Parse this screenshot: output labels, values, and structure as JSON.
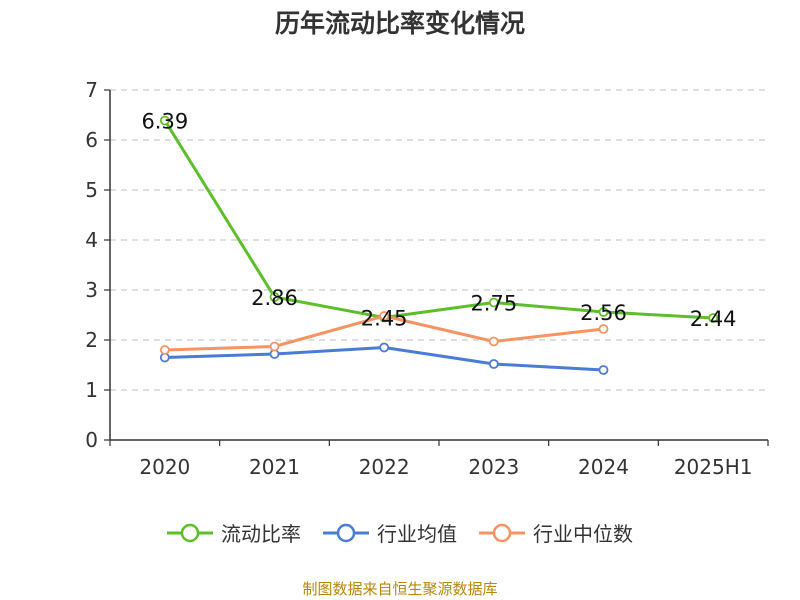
{
  "chart_data": {
    "type": "line",
    "title": "历年流动比率变化情况",
    "categories": [
      "2020",
      "2021",
      "2022",
      "2023",
      "2024",
      "2025H1"
    ],
    "ylim": [
      0,
      7
    ],
    "yticks": [
      "0",
      "1",
      "2",
      "3",
      "4",
      "5",
      "6",
      "7"
    ],
    "grid": "horizontal dashed",
    "legend_position": "bottom",
    "series": [
      {
        "name": "流动比率",
        "color": "#5cbf2a",
        "values": [
          6.39,
          2.86,
          2.45,
          2.75,
          2.56,
          2.44
        ],
        "labels": [
          "6.39",
          "2.86",
          "2.45",
          "2.75",
          "2.56",
          "2.44"
        ]
      },
      {
        "name": "行业均值",
        "color": "#4a7bd6",
        "values": [
          1.65,
          1.72,
          1.85,
          1.52,
          1.4,
          null
        ]
      },
      {
        "name": "行业中位数",
        "color": "#f59362",
        "values": [
          1.8,
          1.87,
          2.48,
          1.97,
          2.22,
          null
        ]
      }
    ],
    "source": "制图数据来自恒生聚源数据库"
  }
}
